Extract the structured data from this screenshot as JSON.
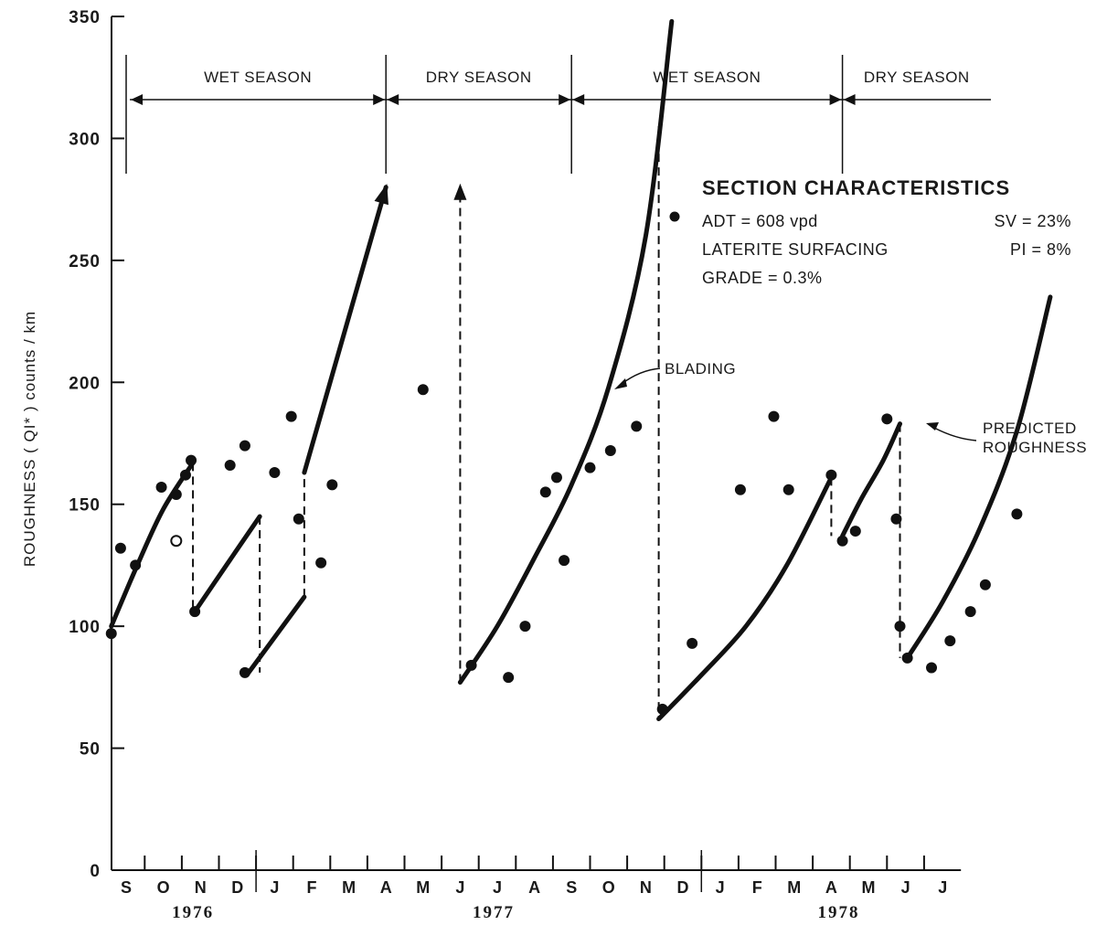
{
  "chart_data": {
    "type": "scatter",
    "title": "",
    "xlabel": "",
    "ylabel": "ROUGHNESS ( QI* ) counts / km",
    "ylim": [
      0,
      350
    ],
    "yticks": [
      0,
      50,
      100,
      150,
      200,
      250,
      300,
      350
    ],
    "x_unit": "months since start of September 1976",
    "xlim": [
      -0.6,
      22.6
    ],
    "months": [
      "S",
      "O",
      "N",
      "D",
      "J",
      "F",
      "M",
      "A",
      "M",
      "J",
      "J",
      "A",
      "S",
      "O",
      "N",
      "D",
      "J",
      "F",
      "M",
      "A",
      "M",
      "J",
      "J"
    ],
    "years": [
      {
        "label": "1976",
        "x": 1.8
      },
      {
        "label": "1977",
        "x": 9.9
      },
      {
        "label": "1978",
        "x": 19.2
      }
    ],
    "seasons": [
      {
        "label": "WET SEASON",
        "start": 0.1,
        "end": 7.0
      },
      {
        "label": "DRY SEASON",
        "start": 7.0,
        "end": 12.0
      },
      {
        "label": "WET SEASON",
        "start": 12.0,
        "end": 19.3
      },
      {
        "label": "DRY SEASON",
        "start": 19.3,
        "end": 23.3
      }
    ],
    "season_dividers": [
      0.0,
      7.0,
      12.0,
      19.3
    ],
    "series": [
      {
        "name": "observed",
        "style": "filled-dot",
        "points": [
          [
            -0.4,
            97
          ],
          [
            -0.15,
            132
          ],
          [
            0.25,
            125
          ],
          [
            0.95,
            157
          ],
          [
            1.35,
            154
          ],
          [
            1.6,
            162
          ],
          [
            1.75,
            168
          ],
          [
            1.85,
            106
          ],
          [
            2.8,
            166
          ],
          [
            3.2,
            174
          ],
          [
            3.2,
            81
          ],
          [
            4.0,
            163
          ],
          [
            4.45,
            186
          ],
          [
            4.65,
            144
          ],
          [
            5.25,
            126
          ],
          [
            5.55,
            158
          ],
          [
            8.0,
            197
          ],
          [
            9.3,
            84
          ],
          [
            10.3,
            79
          ],
          [
            10.75,
            100
          ],
          [
            11.3,
            155
          ],
          [
            11.6,
            161
          ],
          [
            11.8,
            127
          ],
          [
            12.5,
            165
          ],
          [
            13.05,
            172
          ],
          [
            13.75,
            182
          ],
          [
            14.45,
            66
          ],
          [
            15.25,
            93
          ],
          [
            16.55,
            156
          ],
          [
            17.45,
            186
          ],
          [
            17.85,
            156
          ],
          [
            19.0,
            162
          ],
          [
            19.3,
            135
          ],
          [
            19.65,
            139
          ],
          [
            20.5,
            185
          ],
          [
            20.75,
            144
          ],
          [
            20.85,
            100
          ],
          [
            21.05,
            87
          ],
          [
            21.7,
            83
          ],
          [
            22.2,
            94
          ],
          [
            22.75,
            106
          ],
          [
            23.15,
            117
          ],
          [
            24.0,
            146
          ]
        ]
      },
      {
        "name": "observed-open",
        "style": "open-dot",
        "points": [
          [
            1.35,
            135
          ]
        ]
      }
    ],
    "predicted_roughness": [
      {
        "x": [
          -0.4,
          0.3,
          1.0,
          1.8
        ],
        "y": [
          100,
          125,
          148,
          167
        ],
        "arrow": false
      },
      {
        "x": [
          1.85,
          2.7,
          3.6
        ],
        "y": [
          106,
          125,
          145
        ],
        "arrow": false
      },
      {
        "x": [
          3.3,
          4.8
        ],
        "y": [
          81,
          112
        ],
        "arrow": false
      },
      {
        "x": [
          4.8,
          7.0
        ],
        "y": [
          163,
          280
        ],
        "arrow": true
      },
      {
        "x": [
          9.0,
          10.0,
          11.0,
          12.0,
          13.0,
          14.0,
          14.7
        ],
        "y": [
          77,
          100,
          128,
          158,
          198,
          260,
          348
        ],
        "arrow": false
      },
      {
        "x": [
          14.35,
          15.5,
          16.7,
          17.8,
          19.0
        ],
        "y": [
          62,
          80,
          100,
          125,
          161
        ],
        "arrow": false
      },
      {
        "x": [
          19.3,
          19.8,
          20.4,
          20.85
        ],
        "y": [
          137,
          152,
          168,
          183
        ],
        "arrow": false
      },
      {
        "x": [
          21.05,
          22.0,
          23.0,
          24.0,
          24.9
        ],
        "y": [
          87,
          110,
          140,
          180,
          235
        ],
        "arrow": false
      }
    ],
    "blading_jumps": [
      {
        "x": 1.8,
        "from": 167,
        "to": 106,
        "arrow": false
      },
      {
        "x": 3.6,
        "from": 145,
        "to": 81,
        "arrow": false
      },
      {
        "x": 4.8,
        "from": 112,
        "to": 163,
        "arrow": false
      },
      {
        "x": 9.0,
        "from": 77,
        "to": 280,
        "arrow": true
      },
      {
        "x": 14.35,
        "from": 305,
        "to": 62,
        "arrow": false
      },
      {
        "x": 19.0,
        "from": 161,
        "to": 137,
        "arrow": false
      },
      {
        "x": 20.85,
        "from": 183,
        "to": 87,
        "arrow": false
      }
    ]
  },
  "annotations": {
    "blading": "BLADING",
    "predicted": [
      "PREDICTED",
      "ROUGHNESS"
    ]
  },
  "section": {
    "title": "SECTION CHARACTERISTICS",
    "adt": "ADT = 608 vpd",
    "sv": "SV = 23%",
    "surfacing": "LATERITE SURFACING",
    "pi": "PI = 8%",
    "grade": "GRADE = 0.3%"
  }
}
